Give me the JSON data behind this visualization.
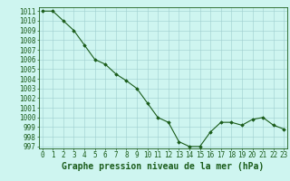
{
  "x": [
    0,
    1,
    2,
    3,
    4,
    5,
    6,
    7,
    8,
    9,
    10,
    11,
    12,
    13,
    14,
    15,
    16,
    17,
    18,
    19,
    20,
    21,
    22,
    23
  ],
  "y": [
    1011,
    1011,
    1010,
    1009,
    1007.5,
    1006,
    1005.5,
    1004.5,
    1003.8,
    1003,
    1001.5,
    1000,
    999.5,
    997.5,
    997,
    997,
    998.5,
    999.5,
    999.5,
    999.2,
    999.8,
    1000,
    999.2,
    998.8
  ],
  "ylim_min": 996.8,
  "ylim_max": 1011.4,
  "xlim_min": -0.3,
  "xlim_max": 23.3,
  "yticks": [
    997,
    998,
    999,
    1000,
    1001,
    1002,
    1003,
    1004,
    1005,
    1006,
    1007,
    1008,
    1009,
    1010,
    1011
  ],
  "xticks": [
    0,
    1,
    2,
    3,
    4,
    5,
    6,
    7,
    8,
    9,
    10,
    11,
    12,
    13,
    14,
    15,
    16,
    17,
    18,
    19,
    20,
    21,
    22,
    23
  ],
  "line_color": "#1a5c1a",
  "marker_color": "#1a5c1a",
  "bg_color": "#cef5f0",
  "grid_color": "#9ecece",
  "xlabel": "Graphe pression niveau de la mer (hPa)",
  "xlabel_color": "#1a5c1a",
  "tick_color": "#1a5c1a",
  "axis_color": "#1a5c1a",
  "tick_fontsize": 5.5,
  "label_fontsize": 7.0
}
